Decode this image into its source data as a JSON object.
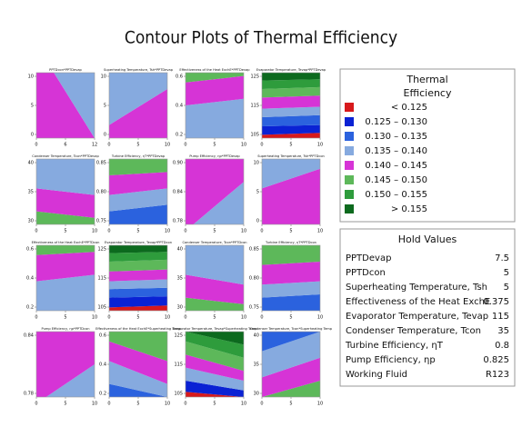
{
  "title": "Contour Plots of Thermal Efficiency",
  "legend": {
    "title_lines": [
      "Thermal",
      "Efficiency"
    ],
    "entries": [
      {
        "label": "< 0.125",
        "color": "#d7191c"
      },
      {
        "label": "0.125  –  0.130",
        "color": "#0a22d4"
      },
      {
        "label": "0.130  –  0.135",
        "color": "#2b62de"
      },
      {
        "label": "0.135  –  0.140",
        "color": "#86aadf"
      },
      {
        "label": "0.140  –  0.145",
        "color": "#d634d6"
      },
      {
        "label": "0.145  –  0.150",
        "color": "#5db85a"
      },
      {
        "label": "0.150  –  0.155",
        "color": "#2e9c3c"
      },
      {
        "label": "> 0.155",
        "color": "#0c6a1e"
      }
    ]
  },
  "hold_values": {
    "title": "Hold Values",
    "rows": [
      [
        "PPTDevap",
        "7.5"
      ],
      [
        "PPTDcon",
        "5"
      ],
      [
        "Superheating Temperature, Tsh",
        "5"
      ],
      [
        "Effectiveness of the Heat ExchE",
        "0.375"
      ],
      [
        "Evaporator Temperature, Tevap",
        "115"
      ],
      [
        "Condenser Temperature, Tcon",
        "35"
      ],
      [
        "Turbine Efficiency, ηT",
        "0.8"
      ],
      [
        "Pump Efficiency, ηp",
        "0.825"
      ],
      [
        "Working Fluid",
        "R123"
      ]
    ]
  },
  "panels": [
    {
      "title": "PPTDcon*PPTDevap",
      "xticks": [
        0,
        6,
        12
      ],
      "yticks": [
        0,
        5,
        10
      ]
    },
    {
      "title": "Superheating Temperature, Tsh*PPTDevap",
      "xticks": [
        0,
        5,
        10
      ],
      "yticks": [
        0,
        5,
        10
      ]
    },
    {
      "title": "Effectiveness of the Heat ExchE*PPTDevap",
      "xticks": [
        0,
        5,
        10
      ],
      "yticks": [
        0.2,
        0.4,
        0.6
      ]
    },
    {
      "title": "Evaporator Temperature, Tevap*PPTDevap",
      "xticks": [
        0,
        5,
        10
      ],
      "yticks": [
        105,
        115,
        125
      ]
    },
    {
      "title": "Condenser Temperature, Tcon*PPTDevap",
      "xticks": [
        0,
        5,
        10
      ],
      "yticks": [
        30,
        35,
        40
      ]
    },
    {
      "title": "Turbine Efficiency, ηT*PPTDevap",
      "xticks": [
        0,
        5,
        10
      ],
      "yticks": [
        0.75,
        {
          "value": 0.8,
          "label": "0.80"
        },
        0.85
      ]
    },
    {
      "title": "Pump Efficiency, ηp*PPTDevap",
      "xticks": [
        0,
        5,
        10
      ],
      "yticks": [
        0.78,
        0.84,
        {
          "value": 0.9,
          "label": "0.90"
        }
      ]
    },
    {
      "title": "Superheating Temperature, Tsh*PPTDcon",
      "xticks": [
        0,
        5,
        10
      ],
      "yticks": [
        0,
        5,
        10
      ]
    },
    {
      "title": "Effectiveness of the Heat ExchE*PPTDcon",
      "xticks": [
        0,
        5,
        10
      ],
      "yticks": [
        0.2,
        0.4,
        0.6
      ]
    },
    {
      "title": "Evaporator Temperature, Tevap*PPTDcon",
      "xticks": [
        0,
        5,
        10
      ],
      "yticks": [
        105,
        115,
        125
      ]
    },
    {
      "title": "Condenser Temperature, Tcon*PPTDcon",
      "xticks": [
        0,
        5,
        10
      ],
      "yticks": [
        30,
        35,
        40
      ]
    },
    {
      "title": "Turbine Efficiency, ηT*PPTDcon",
      "xticks": [
        0,
        5,
        10
      ],
      "yticks": [
        0.75,
        {
          "value": 0.8,
          "label": "0.80"
        },
        0.85
      ]
    },
    {
      "title": "Pump Efficiency, ηp*PPTDcon",
      "xticks": [
        0,
        5,
        10
      ],
      "yticks": [
        0.78,
        0.84
      ]
    },
    {
      "title": "Effectiveness of the Heat ExchE*Superheating Temp",
      "xticks": [
        0,
        5,
        10
      ],
      "yticks": [
        0.2,
        0.4,
        0.6
      ]
    },
    {
      "title": "Evaporator Temperature, Tevap*Superheating Temp",
      "xticks": [
        0,
        5,
        10
      ],
      "yticks": [
        105,
        115,
        125
      ]
    },
    {
      "title": "Condenser Temperature, Tcon*Superheating Temp",
      "xticks": [
        0,
        5,
        10
      ],
      "yticks": [
        30,
        35,
        40
      ]
    }
  ]
}
